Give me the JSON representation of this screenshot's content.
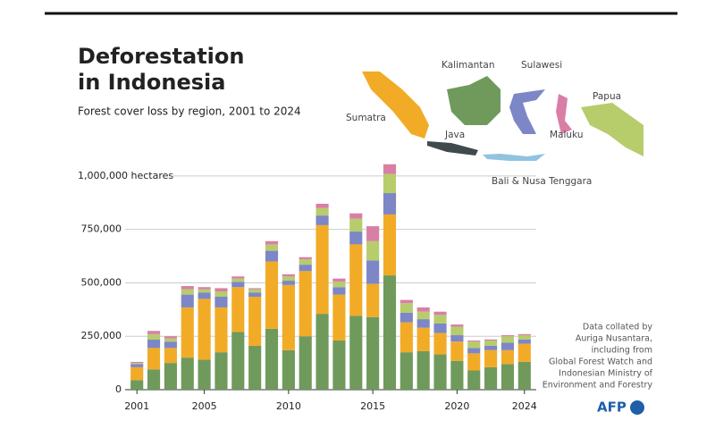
{
  "chart_data": {
    "type": "bar",
    "title": [
      "Deforestation",
      "in Indonesia"
    ],
    "subtitle": "Forest cover loss by region, 2001 to 2024",
    "x": [
      2001,
      2002,
      2003,
      2004,
      2005,
      2006,
      2007,
      2008,
      2009,
      2010,
      2011,
      2012,
      2013,
      2014,
      2015,
      2016,
      2017,
      2018,
      2019,
      2020,
      2021,
      2022,
      2023,
      2024
    ],
    "xticks": [
      2001,
      2005,
      2010,
      2015,
      2020,
      2024
    ],
    "xlim": [
      2000.3,
      2024.7
    ],
    "ylim": [
      0,
      1100000
    ],
    "yticks": [
      0,
      {
        "value": 250000,
        "label": "250,000"
      },
      {
        "value": 500000,
        "label": "500,000"
      },
      {
        "value": 750000,
        "label": "750,000"
      },
      {
        "value": 1000000,
        "label": "1,000,000 hectares"
      }
    ],
    "grid": true,
    "stacked": true,
    "series": [
      {
        "name": "Kalimantan",
        "color": "#6f9a5c",
        "values": [
          45000,
          95000,
          125000,
          150000,
          140000,
          175000,
          270000,
          205000,
          285000,
          185000,
          250000,
          355000,
          230000,
          345000,
          340000,
          535000,
          175000,
          180000,
          165000,
          135000,
          90000,
          105000,
          120000,
          130000
        ]
      },
      {
        "name": "Sumatra",
        "color": "#f2ab27",
        "values": [
          60000,
          100000,
          70000,
          235000,
          285000,
          210000,
          210000,
          230000,
          315000,
          305000,
          305000,
          415000,
          215000,
          335000,
          155000,
          285000,
          140000,
          110000,
          100000,
          90000,
          80000,
          80000,
          65000,
          85000
        ]
      },
      {
        "name": "Sulawesi",
        "color": "#7d86c6",
        "values": [
          15000,
          40000,
          30000,
          60000,
          30000,
          50000,
          25000,
          20000,
          50000,
          20000,
          30000,
          45000,
          35000,
          60000,
          110000,
          100000,
          45000,
          40000,
          45000,
          30000,
          25000,
          20000,
          35000,
          20000
        ]
      },
      {
        "name": "Papua",
        "color": "#b7cc6b",
        "values": [
          5000,
          25000,
          15000,
          25000,
          15000,
          25000,
          15000,
          15000,
          30000,
          20000,
          25000,
          35000,
          25000,
          60000,
          90000,
          90000,
          45000,
          35000,
          40000,
          40000,
          30000,
          25000,
          30000,
          20000
        ]
      },
      {
        "name": "Maluku",
        "color": "#d97fa6",
        "values": [
          5000,
          15000,
          10000,
          15000,
          10000,
          15000,
          10000,
          5000,
          15000,
          10000,
          10000,
          20000,
          15000,
          25000,
          70000,
          45000,
          15000,
          20000,
          15000,
          10000,
          5000,
          5000,
          5000,
          5000
        ]
      }
    ],
    "map_labels": [
      "Java",
      "Bali & Nusa Tenggara"
    ],
    "source": [
      "Data collated by",
      "Auriga Nusantara,",
      "including from",
      "Global Forest Watch and",
      "Indonesian Ministry of",
      "Environment  and Forestry"
    ],
    "logo": "AFP"
  }
}
